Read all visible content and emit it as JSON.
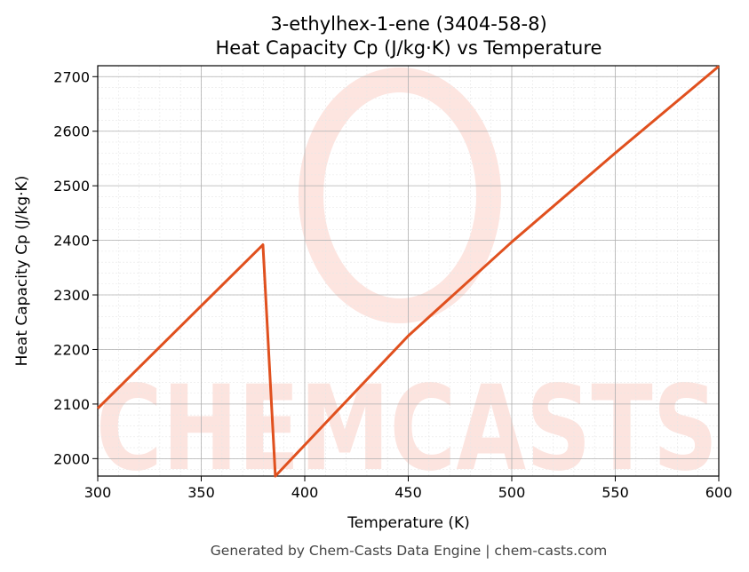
{
  "chart_data": {
    "type": "line",
    "title": "3-ethylhex-1-ene (3404-58-8)",
    "subtitle": "Heat Capacity Cp (J/kg·K) vs Temperature",
    "xlabel": "Temperature (K)",
    "ylabel": "Heat Capacity Cp (J/kg·K)",
    "xlim": [
      300,
      600
    ],
    "ylim": [
      1968,
      2720
    ],
    "xticks": [
      300,
      350,
      400,
      450,
      500,
      550,
      600
    ],
    "yticks": [
      2000,
      2100,
      2200,
      2300,
      2400,
      2500,
      2600,
      2700
    ],
    "grid": true,
    "series": [
      {
        "name": "Cp",
        "color": "#e0501e",
        "x": [
          300,
          379.8,
          385.8,
          400,
          450,
          500,
          550,
          600
        ],
        "y": [
          2092,
          2392,
          1968,
          2025,
          2225,
          2397,
          2560,
          2719
        ]
      }
    ],
    "watermark": "CHEMCASTS",
    "footer": "Generated by Chem-Casts Data Engine | chem-casts.com"
  }
}
